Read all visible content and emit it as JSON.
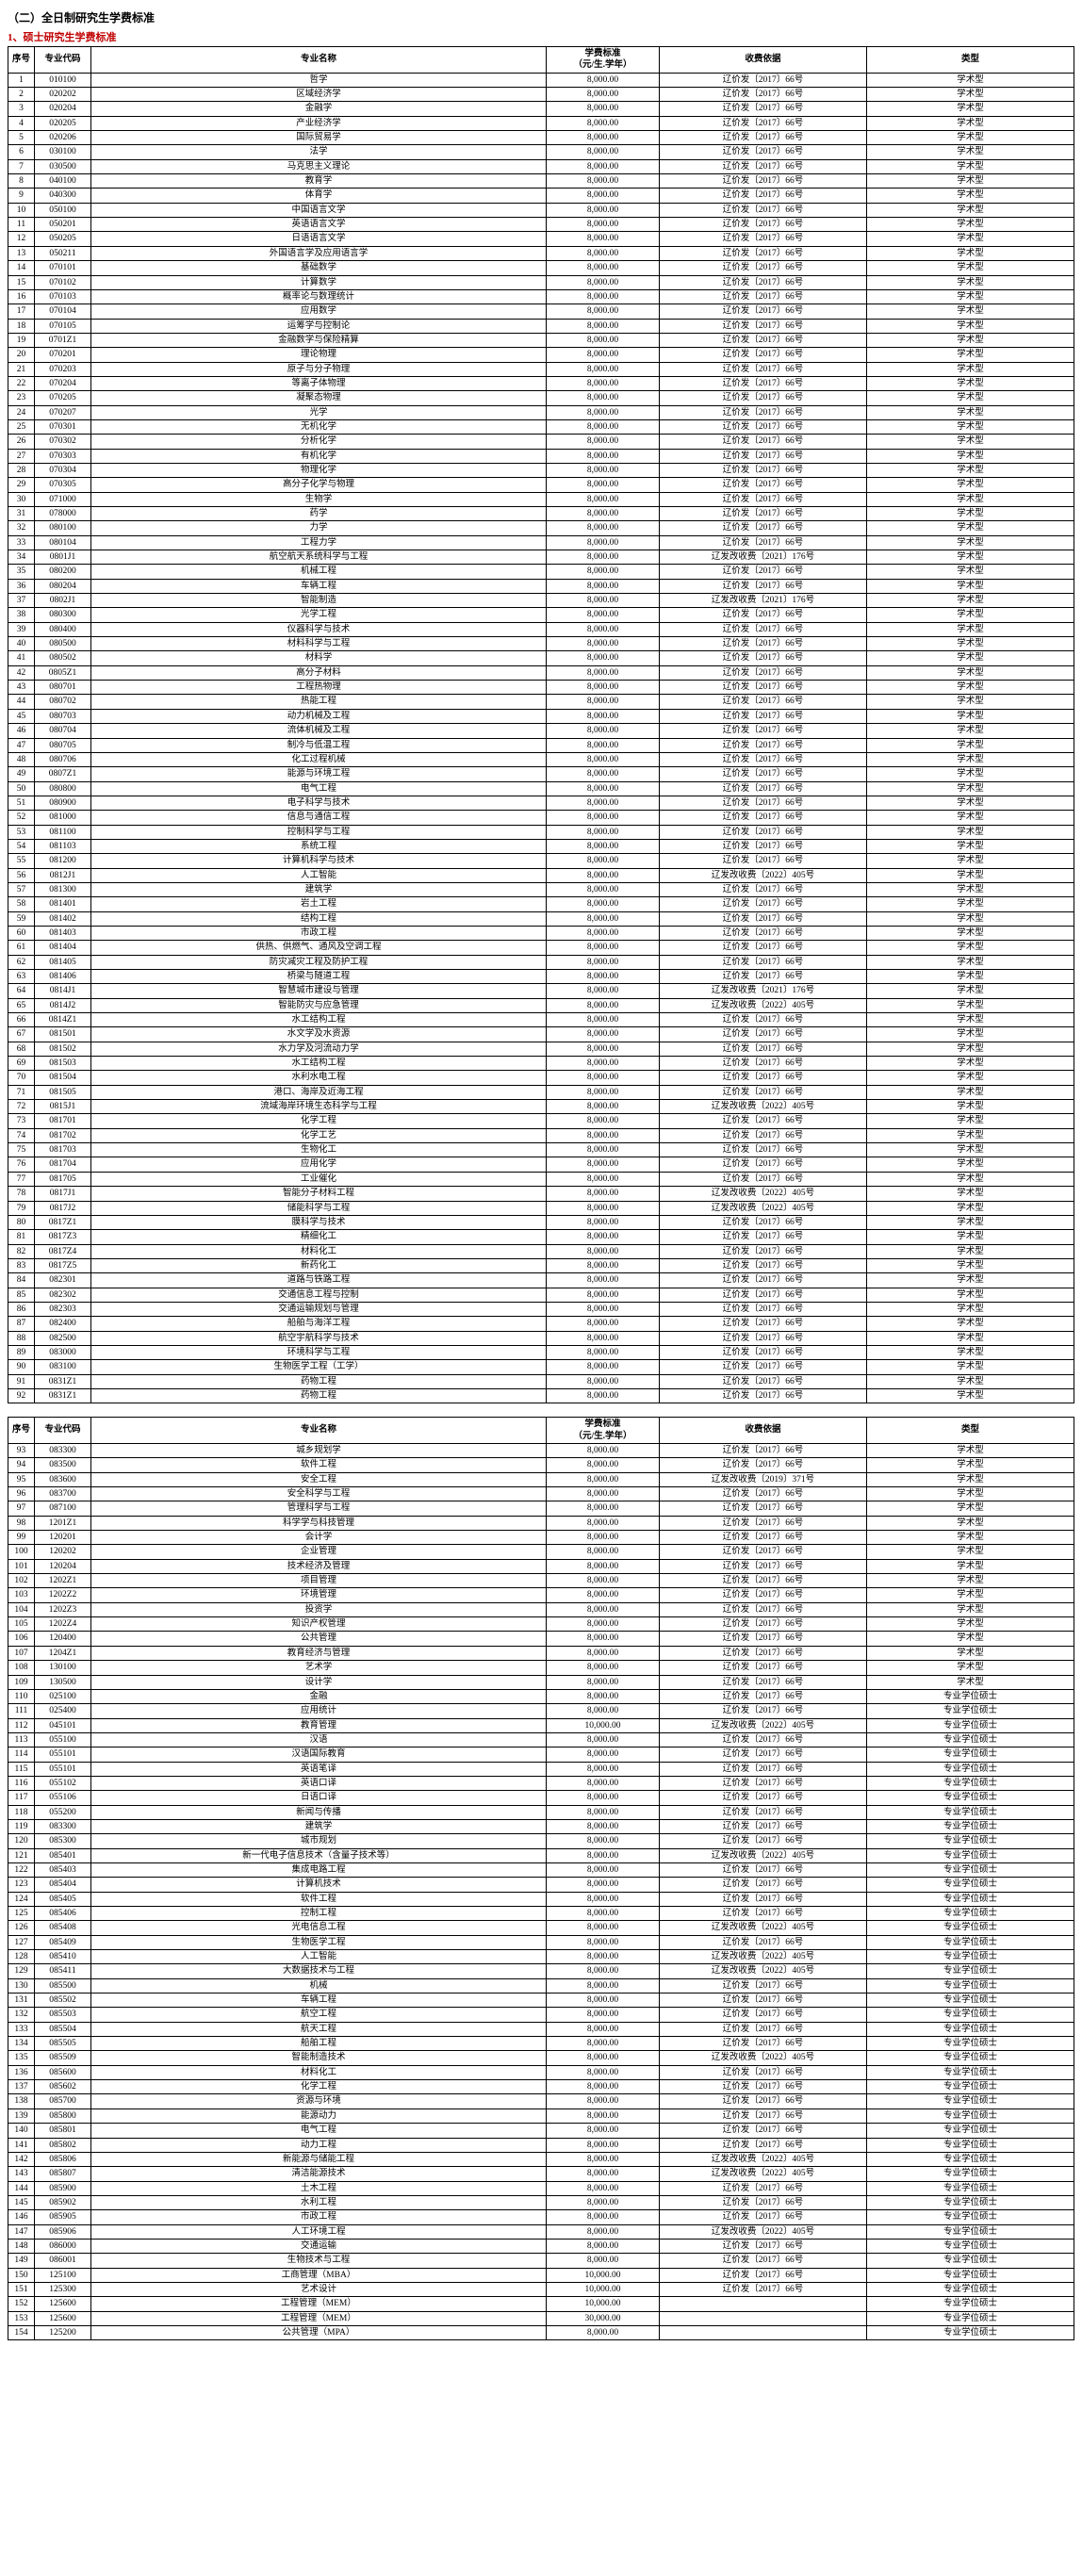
{
  "title": "（二）全日制研究生学费标准",
  "section1": "1、硕士研究生学费标准",
  "hdr": {
    "idx": "序号",
    "code": "专业代码",
    "name": "专业名称",
    "fee": "学费标准\n（元/生.学年）",
    "basis": "收费依据",
    "type": "类型"
  },
  "t1": [
    [
      "1",
      "010100",
      "哲学",
      "8,000.00",
      "辽价发〔2017〕66号",
      "学术型"
    ],
    [
      "2",
      "020202",
      "区域经济学",
      "8,000.00",
      "辽价发〔2017〕66号",
      "学术型"
    ],
    [
      "3",
      "020204",
      "金融学",
      "8,000.00",
      "辽价发〔2017〕66号",
      "学术型"
    ],
    [
      "4",
      "020205",
      "产业经济学",
      "8,000.00",
      "辽价发〔2017〕66号",
      "学术型"
    ],
    [
      "5",
      "020206",
      "国际贸易学",
      "8,000.00",
      "辽价发〔2017〕66号",
      "学术型"
    ],
    [
      "6",
      "030100",
      "法学",
      "8,000.00",
      "辽价发〔2017〕66号",
      "学术型"
    ],
    [
      "7",
      "030500",
      "马克思主义理论",
      "8,000.00",
      "辽价发〔2017〕66号",
      "学术型"
    ],
    [
      "8",
      "040100",
      "教育学",
      "8,000.00",
      "辽价发〔2017〕66号",
      "学术型"
    ],
    [
      "9",
      "040300",
      "体育学",
      "8,000.00",
      "辽价发〔2017〕66号",
      "学术型"
    ],
    [
      "10",
      "050100",
      "中国语言文学",
      "8,000.00",
      "辽价发〔2017〕66号",
      "学术型"
    ],
    [
      "11",
      "050201",
      "英语语言文学",
      "8,000.00",
      "辽价发〔2017〕66号",
      "学术型"
    ],
    [
      "12",
      "050205",
      "日语语言文学",
      "8,000.00",
      "辽价发〔2017〕66号",
      "学术型"
    ],
    [
      "13",
      "050211",
      "外国语言学及应用语言学",
      "8,000.00",
      "辽价发〔2017〕66号",
      "学术型"
    ],
    [
      "14",
      "070101",
      "基础数学",
      "8,000.00",
      "辽价发〔2017〕66号",
      "学术型"
    ],
    [
      "15",
      "070102",
      "计算数学",
      "8,000.00",
      "辽价发〔2017〕66号",
      "学术型"
    ],
    [
      "16",
      "070103",
      "概率论与数理统计",
      "8,000.00",
      "辽价发〔2017〕66号",
      "学术型"
    ],
    [
      "17",
      "070104",
      "应用数学",
      "8,000.00",
      "辽价发〔2017〕66号",
      "学术型"
    ],
    [
      "18",
      "070105",
      "运筹学与控制论",
      "8,000.00",
      "辽价发〔2017〕66号",
      "学术型"
    ],
    [
      "19",
      "0701Z1",
      "金融数学与保险精算",
      "8,000.00",
      "辽价发〔2017〕66号",
      "学术型"
    ],
    [
      "20",
      "070201",
      "理论物理",
      "8,000.00",
      "辽价发〔2017〕66号",
      "学术型"
    ],
    [
      "21",
      "070203",
      "原子与分子物理",
      "8,000.00",
      "辽价发〔2017〕66号",
      "学术型"
    ],
    [
      "22",
      "070204",
      "等离子体物理",
      "8,000.00",
      "辽价发〔2017〕66号",
      "学术型"
    ],
    [
      "23",
      "070205",
      "凝聚态物理",
      "8,000.00",
      "辽价发〔2017〕66号",
      "学术型"
    ],
    [
      "24",
      "070207",
      "光学",
      "8,000.00",
      "辽价发〔2017〕66号",
      "学术型"
    ],
    [
      "25",
      "070301",
      "无机化学",
      "8,000.00",
      "辽价发〔2017〕66号",
      "学术型"
    ],
    [
      "26",
      "070302",
      "分析化学",
      "8,000.00",
      "辽价发〔2017〕66号",
      "学术型"
    ],
    [
      "27",
      "070303",
      "有机化学",
      "8,000.00",
      "辽价发〔2017〕66号",
      "学术型"
    ],
    [
      "28",
      "070304",
      "物理化学",
      "8,000.00",
      "辽价发〔2017〕66号",
      "学术型"
    ],
    [
      "29",
      "070305",
      "高分子化学与物理",
      "8,000.00",
      "辽价发〔2017〕66号",
      "学术型"
    ],
    [
      "30",
      "071000",
      "生物学",
      "8,000.00",
      "辽价发〔2017〕66号",
      "学术型"
    ],
    [
      "31",
      "078000",
      "药学",
      "8,000.00",
      "辽价发〔2017〕66号",
      "学术型"
    ],
    [
      "32",
      "080100",
      "力学",
      "8,000.00",
      "辽价发〔2017〕66号",
      "学术型"
    ],
    [
      "33",
      "080104",
      "工程力学",
      "8,000.00",
      "辽价发〔2017〕66号",
      "学术型"
    ],
    [
      "34",
      "0801J1",
      "航空航天系统科学与工程",
      "8,000.00",
      "辽发改收费〔2021〕176号",
      "学术型"
    ],
    [
      "35",
      "080200",
      "机械工程",
      "8,000.00",
      "辽价发〔2017〕66号",
      "学术型"
    ],
    [
      "36",
      "080204",
      "车辆工程",
      "8,000.00",
      "辽价发〔2017〕66号",
      "学术型"
    ],
    [
      "37",
      "0802J1",
      "智能制造",
      "8,000.00",
      "辽发改收费〔2021〕176号",
      "学术型"
    ],
    [
      "38",
      "080300",
      "光学工程",
      "8,000.00",
      "辽价发〔2017〕66号",
      "学术型"
    ],
    [
      "39",
      "080400",
      "仪器科学与技术",
      "8,000.00",
      "辽价发〔2017〕66号",
      "学术型"
    ],
    [
      "40",
      "080500",
      "材料科学与工程",
      "8,000.00",
      "辽价发〔2017〕66号",
      "学术型"
    ],
    [
      "41",
      "080502",
      "材料学",
      "8,000.00",
      "辽价发〔2017〕66号",
      "学术型"
    ],
    [
      "42",
      "0805Z1",
      "高分子材料",
      "8,000.00",
      "辽价发〔2017〕66号",
      "学术型"
    ],
    [
      "43",
      "080701",
      "工程热物理",
      "8,000.00",
      "辽价发〔2017〕66号",
      "学术型"
    ],
    [
      "44",
      "080702",
      "热能工程",
      "8,000.00",
      "辽价发〔2017〕66号",
      "学术型"
    ],
    [
      "45",
      "080703",
      "动力机械及工程",
      "8,000.00",
      "辽价发〔2017〕66号",
      "学术型"
    ],
    [
      "46",
      "080704",
      "流体机械及工程",
      "8,000.00",
      "辽价发〔2017〕66号",
      "学术型"
    ],
    [
      "47",
      "080705",
      "制冷与低温工程",
      "8,000.00",
      "辽价发〔2017〕66号",
      "学术型"
    ],
    [
      "48",
      "080706",
      "化工过程机械",
      "8,000.00",
      "辽价发〔2017〕66号",
      "学术型"
    ],
    [
      "49",
      "0807Z1",
      "能源与环境工程",
      "8,000.00",
      "辽价发〔2017〕66号",
      "学术型"
    ],
    [
      "50",
      "080800",
      "电气工程",
      "8,000.00",
      "辽价发〔2017〕66号",
      "学术型"
    ],
    [
      "51",
      "080900",
      "电子科学与技术",
      "8,000.00",
      "辽价发〔2017〕66号",
      "学术型"
    ],
    [
      "52",
      "081000",
      "信息与通信工程",
      "8,000.00",
      "辽价发〔2017〕66号",
      "学术型"
    ],
    [
      "53",
      "081100",
      "控制科学与工程",
      "8,000.00",
      "辽价发〔2017〕66号",
      "学术型"
    ],
    [
      "54",
      "081103",
      "系统工程",
      "8,000.00",
      "辽价发〔2017〕66号",
      "学术型"
    ],
    [
      "55",
      "081200",
      "计算机科学与技术",
      "8,000.00",
      "辽价发〔2017〕66号",
      "学术型"
    ],
    [
      "56",
      "0812J1",
      "人工智能",
      "8,000.00",
      "辽发改收费〔2022〕405号",
      "学术型"
    ],
    [
      "57",
      "081300",
      "建筑学",
      "8,000.00",
      "辽价发〔2017〕66号",
      "学术型"
    ],
    [
      "58",
      "081401",
      "岩土工程",
      "8,000.00",
      "辽价发〔2017〕66号",
      "学术型"
    ],
    [
      "59",
      "081402",
      "结构工程",
      "8,000.00",
      "辽价发〔2017〕66号",
      "学术型"
    ],
    [
      "60",
      "081403",
      "市政工程",
      "8,000.00",
      "辽价发〔2017〕66号",
      "学术型"
    ],
    [
      "61",
      "081404",
      "供热、供燃气、通风及空调工程",
      "8,000.00",
      "辽价发〔2017〕66号",
      "学术型"
    ],
    [
      "62",
      "081405",
      "防灾减灾工程及防护工程",
      "8,000.00",
      "辽价发〔2017〕66号",
      "学术型"
    ],
    [
      "63",
      "081406",
      "桥梁与隧道工程",
      "8,000.00",
      "辽价发〔2017〕66号",
      "学术型"
    ],
    [
      "64",
      "0814J1",
      "智慧城市建设与管理",
      "8,000.00",
      "辽发改收费〔2021〕176号",
      "学术型"
    ],
    [
      "65",
      "0814J2",
      "智能防灾与应急管理",
      "8,000.00",
      "辽发改收费〔2022〕405号",
      "学术型"
    ],
    [
      "66",
      "0814Z1",
      "水工结构工程",
      "8,000.00",
      "辽价发〔2017〕66号",
      "学术型"
    ],
    [
      "67",
      "081501",
      "水文学及水资源",
      "8,000.00",
      "辽价发〔2017〕66号",
      "学术型"
    ],
    [
      "68",
      "081502",
      "水力学及河流动力学",
      "8,000.00",
      "辽价发〔2017〕66号",
      "学术型"
    ],
    [
      "69",
      "081503",
      "水工结构工程",
      "8,000.00",
      "辽价发〔2017〕66号",
      "学术型"
    ],
    [
      "70",
      "081504",
      "水利水电工程",
      "8,000.00",
      "辽价发〔2017〕66号",
      "学术型"
    ],
    [
      "71",
      "081505",
      "港口、海岸及近海工程",
      "8,000.00",
      "辽价发〔2017〕66号",
      "学术型"
    ],
    [
      "72",
      "0815J1",
      "流域海岸环境生态科学与工程",
      "8,000.00",
      "辽发改收费〔2022〕405号",
      "学术型"
    ],
    [
      "73",
      "081701",
      "化学工程",
      "8,000.00",
      "辽价发〔2017〕66号",
      "学术型"
    ],
    [
      "74",
      "081702",
      "化学工艺",
      "8,000.00",
      "辽价发〔2017〕66号",
      "学术型"
    ],
    [
      "75",
      "081703",
      "生物化工",
      "8,000.00",
      "辽价发〔2017〕66号",
      "学术型"
    ],
    [
      "76",
      "081704",
      "应用化学",
      "8,000.00",
      "辽价发〔2017〕66号",
      "学术型"
    ],
    [
      "77",
      "081705",
      "工业催化",
      "8,000.00",
      "辽价发〔2017〕66号",
      "学术型"
    ],
    [
      "78",
      "0817J1",
      "智能分子材料工程",
      "8,000.00",
      "辽发改收费〔2022〕405号",
      "学术型"
    ],
    [
      "79",
      "0817J2",
      "储能科学与工程",
      "8,000.00",
      "辽发改收费〔2022〕405号",
      "学术型"
    ],
    [
      "80",
      "0817Z1",
      "膜科学与技术",
      "8,000.00",
      "辽价发〔2017〕66号",
      "学术型"
    ],
    [
      "81",
      "0817Z3",
      "精细化工",
      "8,000.00",
      "辽价发〔2017〕66号",
      "学术型"
    ],
    [
      "82",
      "0817Z4",
      "材料化工",
      "8,000.00",
      "辽价发〔2017〕66号",
      "学术型"
    ],
    [
      "83",
      "0817Z5",
      "新药化工",
      "8,000.00",
      "辽价发〔2017〕66号",
      "学术型"
    ],
    [
      "84",
      "082301",
      "道路与铁路工程",
      "8,000.00",
      "辽价发〔2017〕66号",
      "学术型"
    ],
    [
      "85",
      "082302",
      "交通信息工程与控制",
      "8,000.00",
      "辽价发〔2017〕66号",
      "学术型"
    ],
    [
      "86",
      "082303",
      "交通运输规划与管理",
      "8,000.00",
      "辽价发〔2017〕66号",
      "学术型"
    ],
    [
      "87",
      "082400",
      "船舶与海洋工程",
      "8,000.00",
      "辽价发〔2017〕66号",
      "学术型"
    ],
    [
      "88",
      "082500",
      "航空宇航科学与技术",
      "8,000.00",
      "辽价发〔2017〕66号",
      "学术型"
    ],
    [
      "89",
      "083000",
      "环境科学与工程",
      "8,000.00",
      "辽价发〔2017〕66号",
      "学术型"
    ],
    [
      "90",
      "083100",
      "生物医学工程（工学）",
      "8,000.00",
      "辽价发〔2017〕66号",
      "学术型"
    ],
    [
      "91",
      "0831Z1",
      "药物工程",
      "8,000.00",
      "辽价发〔2017〕66号",
      "学术型"
    ],
    [
      "92",
      "0831Z1",
      "药物工程",
      "8,000.00",
      "辽价发〔2017〕66号",
      "学术型"
    ]
  ],
  "t2": [
    [
      "93",
      "083300",
      "城乡规划学",
      "8,000.00",
      "辽价发〔2017〕66号",
      "学术型"
    ],
    [
      "94",
      "083500",
      "软件工程",
      "8,000.00",
      "辽价发〔2017〕66号",
      "学术型"
    ],
    [
      "95",
      "083600",
      "安全工程",
      "8,000.00",
      "辽发改收费〔2019〕371号",
      "学术型"
    ],
    [
      "96",
      "083700",
      "安全科学与工程",
      "8,000.00",
      "辽价发〔2017〕66号",
      "学术型"
    ],
    [
      "97",
      "087100",
      "管理科学与工程",
      "8,000.00",
      "辽价发〔2017〕66号",
      "学术型"
    ],
    [
      "98",
      "1201Z1",
      "科学学与科技管理",
      "8,000.00",
      "辽价发〔2017〕66号",
      "学术型"
    ],
    [
      "99",
      "120201",
      "会计学",
      "8,000.00",
      "辽价发〔2017〕66号",
      "学术型"
    ],
    [
      "100",
      "120202",
      "企业管理",
      "8,000.00",
      "辽价发〔2017〕66号",
      "学术型"
    ],
    [
      "101",
      "120204",
      "技术经济及管理",
      "8,000.00",
      "辽价发〔2017〕66号",
      "学术型"
    ],
    [
      "102",
      "1202Z1",
      "项目管理",
      "8,000.00",
      "辽价发〔2017〕66号",
      "学术型"
    ],
    [
      "103",
      "1202Z2",
      "环境管理",
      "8,000.00",
      "辽价发〔2017〕66号",
      "学术型"
    ],
    [
      "104",
      "1202Z3",
      "投资学",
      "8,000.00",
      "辽价发〔2017〕66号",
      "学术型"
    ],
    [
      "105",
      "1202Z4",
      "知识产权管理",
      "8,000.00",
      "辽价发〔2017〕66号",
      "学术型"
    ],
    [
      "106",
      "120400",
      "公共管理",
      "8,000.00",
      "辽价发〔2017〕66号",
      "学术型"
    ],
    [
      "107",
      "1204Z1",
      "教育经济与管理",
      "8,000.00",
      "辽价发〔2017〕66号",
      "学术型"
    ],
    [
      "108",
      "130100",
      "艺术学",
      "8,000.00",
      "辽价发〔2017〕66号",
      "学术型"
    ],
    [
      "109",
      "130500",
      "设计学",
      "8,000.00",
      "辽价发〔2017〕66号",
      "学术型"
    ],
    [
      "110",
      "025100",
      "金融",
      "8,000.00",
      "辽价发〔2017〕66号",
      "专业学位硕士"
    ],
    [
      "111",
      "025400",
      "应用统计",
      "8,000.00",
      "辽价发〔2017〕66号",
      "专业学位硕士"
    ],
    [
      "112",
      "045101",
      "教育管理",
      "10,000.00",
      "辽发改收费〔2022〕405号",
      "专业学位硕士"
    ],
    [
      "113",
      "055100",
      "汉语",
      "8,000.00",
      "辽价发〔2017〕66号",
      "专业学位硕士"
    ],
    [
      "114",
      "055101",
      "汉语国际教育",
      "8,000.00",
      "辽价发〔2017〕66号",
      "专业学位硕士"
    ],
    [
      "115",
      "055101",
      "英语笔译",
      "8,000.00",
      "辽价发〔2017〕66号",
      "专业学位硕士"
    ],
    [
      "116",
      "055102",
      "英语口译",
      "8,000.00",
      "辽价发〔2017〕66号",
      "专业学位硕士"
    ],
    [
      "117",
      "055106",
      "日语口译",
      "8,000.00",
      "辽价发〔2017〕66号",
      "专业学位硕士"
    ],
    [
      "118",
      "055200",
      "新闻与传播",
      "8,000.00",
      "辽价发〔2017〕66号",
      "专业学位硕士"
    ],
    [
      "119",
      "083300",
      "建筑学",
      "8,000.00",
      "辽价发〔2017〕66号",
      "专业学位硕士"
    ],
    [
      "120",
      "085300",
      "城市规划",
      "8,000.00",
      "辽价发〔2017〕66号",
      "专业学位硕士"
    ],
    [
      "121",
      "085401",
      "新一代电子信息技术（含量子技术等）",
      "8,000.00",
      "辽发改收费〔2022〕405号",
      "专业学位硕士"
    ],
    [
      "122",
      "085403",
      "集成电路工程",
      "8,000.00",
      "辽价发〔2017〕66号",
      "专业学位硕士"
    ],
    [
      "123",
      "085404",
      "计算机技术",
      "8,000.00",
      "辽价发〔2017〕66号",
      "专业学位硕士"
    ],
    [
      "124",
      "085405",
      "软件工程",
      "8,000.00",
      "辽价发〔2017〕66号",
      "专业学位硕士"
    ],
    [
      "125",
      "085406",
      "控制工程",
      "8,000.00",
      "辽价发〔2017〕66号",
      "专业学位硕士"
    ],
    [
      "126",
      "085408",
      "光电信息工程",
      "8,000.00",
      "辽发改收费〔2022〕405号",
      "专业学位硕士"
    ],
    [
      "127",
      "085409",
      "生物医学工程",
      "8,000.00",
      "辽价发〔2017〕66号",
      "专业学位硕士"
    ],
    [
      "128",
      "085410",
      "人工智能",
      "8,000.00",
      "辽发改收费〔2022〕405号",
      "专业学位硕士"
    ],
    [
      "129",
      "085411",
      "大数据技术与工程",
      "8,000.00",
      "辽发改收费〔2022〕405号",
      "专业学位硕士"
    ],
    [
      "130",
      "085500",
      "机械",
      "8,000.00",
      "辽价发〔2017〕66号",
      "专业学位硕士"
    ],
    [
      "131",
      "085502",
      "车辆工程",
      "8,000.00",
      "辽价发〔2017〕66号",
      "专业学位硕士"
    ],
    [
      "132",
      "085503",
      "航空工程",
      "8,000.00",
      "辽价发〔2017〕66号",
      "专业学位硕士"
    ],
    [
      "133",
      "085504",
      "航天工程",
      "8,000.00",
      "辽价发〔2017〕66号",
      "专业学位硕士"
    ],
    [
      "134",
      "085505",
      "船舶工程",
      "8,000.00",
      "辽价发〔2017〕66号",
      "专业学位硕士"
    ],
    [
      "135",
      "085509",
      "智能制造技术",
      "8,000.00",
      "辽发改收费〔2022〕405号",
      "专业学位硕士"
    ],
    [
      "136",
      "085600",
      "材料化工",
      "8,000.00",
      "辽价发〔2017〕66号",
      "专业学位硕士"
    ],
    [
      "137",
      "085602",
      "化学工程",
      "8,000.00",
      "辽价发〔2017〕66号",
      "专业学位硕士"
    ],
    [
      "138",
      "085700",
      "资源与环境",
      "8,000.00",
      "辽价发〔2017〕66号",
      "专业学位硕士"
    ],
    [
      "139",
      "085800",
      "能源动力",
      "8,000.00",
      "辽价发〔2017〕66号",
      "专业学位硕士"
    ],
    [
      "140",
      "085801",
      "电气工程",
      "8,000.00",
      "辽价发〔2017〕66号",
      "专业学位硕士"
    ],
    [
      "141",
      "085802",
      "动力工程",
      "8,000.00",
      "辽价发〔2017〕66号",
      "专业学位硕士"
    ],
    [
      "142",
      "085806",
      "新能源与储能工程",
      "8,000.00",
      "辽发改收费〔2022〕405号",
      "专业学位硕士"
    ],
    [
      "143",
      "085807",
      "清洁能源技术",
      "8,000.00",
      "辽发改收费〔2022〕405号",
      "专业学位硕士"
    ],
    [
      "144",
      "085900",
      "土木工程",
      "8,000.00",
      "辽价发〔2017〕66号",
      "专业学位硕士"
    ],
    [
      "145",
      "085902",
      "水利工程",
      "8,000.00",
      "辽价发〔2017〕66号",
      "专业学位硕士"
    ],
    [
      "146",
      "085905",
      "市政工程",
      "8,000.00",
      "辽价发〔2017〕66号",
      "专业学位硕士"
    ],
    [
      "147",
      "085906",
      "人工环境工程",
      "8,000.00",
      "辽发改收费〔2022〕405号",
      "专业学位硕士"
    ],
    [
      "148",
      "086000",
      "交通运输",
      "8,000.00",
      "辽价发〔2017〕66号",
      "专业学位硕士"
    ],
    [
      "149",
      "086001",
      "生物技术与工程",
      "8,000.00",
      "辽价发〔2017〕66号",
      "专业学位硕士"
    ],
    [
      "150",
      "125100",
      "工商管理（MBA）",
      "10,000.00",
      "辽价发〔2017〕66号",
      "专业学位硕士"
    ],
    [
      "151",
      "125300",
      "艺术设计",
      "10,000.00",
      "辽价发〔2017〕66号",
      "专业学位硕士"
    ],
    [
      "152",
      "125600",
      "工程管理（MEM）",
      "10,000.00",
      "",
      "专业学位硕士"
    ],
    [
      "153",
      "125600",
      "工程管理（MEM）",
      "30,000.00",
      "",
      "专业学位硕士"
    ],
    [
      "154",
      "125200",
      "公共管理（MPA）",
      "8,000.00",
      "",
      "专业学位硕士"
    ]
  ]
}
